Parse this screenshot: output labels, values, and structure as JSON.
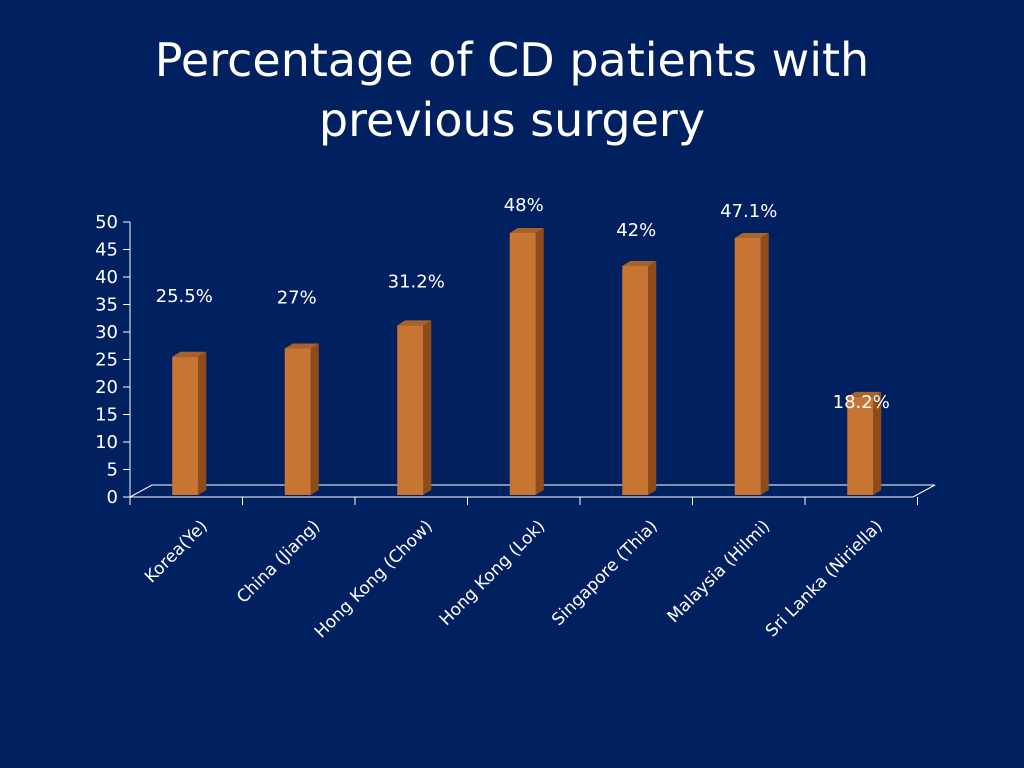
{
  "slide": {
    "title_line1": "Percentage of CD patients with",
    "title_line2": "previous surgery"
  },
  "colors": {
    "background": "#012060",
    "bar_front": "#C87533",
    "bar_side": "#8E4C1A",
    "bar_top": "#A9622A",
    "axis": "#FFFFFF"
  },
  "chart_data": {
    "type": "bar",
    "title": "Percentage of CD patients with previous surgery",
    "xlabel": "",
    "ylabel": "",
    "ylim": [
      0,
      50
    ],
    "yticks": [
      0,
      5,
      10,
      15,
      20,
      25,
      30,
      35,
      40,
      45,
      50
    ],
    "categories": [
      "Korea(Ye)",
      "China (Jiang)",
      "Hong Kong (Chow)",
      "Hong Kong (Lok)",
      "Singapore (Thia)",
      "Malaysia (Hilmi)",
      "Sri Lanka (Niriella)"
    ],
    "values": [
      25.5,
      27,
      31.2,
      48,
      42,
      47.1,
      18.2
    ],
    "data_labels": [
      "25.5%",
      "27%",
      "31.2%",
      "48%",
      "42%",
      "47.1%",
      "18.2%"
    ],
    "grid": false,
    "legend": "none"
  }
}
